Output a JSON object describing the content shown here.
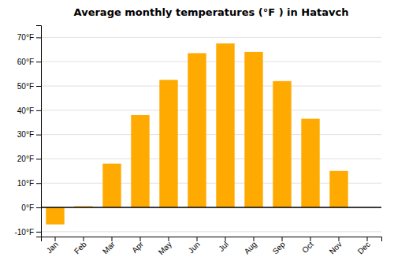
{
  "chart_data": {
    "type": "bar",
    "title": "Average monthly temperatures (°F ) in Hatavch",
    "categories": [
      "Jan",
      "Feb",
      "Mar",
      "Apr",
      "May",
      "Jun",
      "Jul",
      "Aug",
      "Sep",
      "Oct",
      "Nov",
      "Dec"
    ],
    "values": [
      -7,
      0.5,
      18,
      38,
      52.5,
      63.5,
      67.5,
      64,
      52,
      36.5,
      15,
      0
    ],
    "color": "#FFAA00",
    "ylim": [
      -12,
      75
    ],
    "yticks": [
      {
        "value": -10,
        "label": "-10°F"
      },
      {
        "value": 0,
        "label": "0°F"
      },
      {
        "value": 10,
        "label": "10°F"
      },
      {
        "value": 20,
        "label": "20°F"
      },
      {
        "value": 30,
        "label": "30°F"
      },
      {
        "value": 40,
        "label": "40°F"
      },
      {
        "value": 50,
        "label": "50°F"
      },
      {
        "value": 60,
        "label": "60°F"
      },
      {
        "value": 70,
        "label": "70°F"
      }
    ],
    "grid": true
  }
}
